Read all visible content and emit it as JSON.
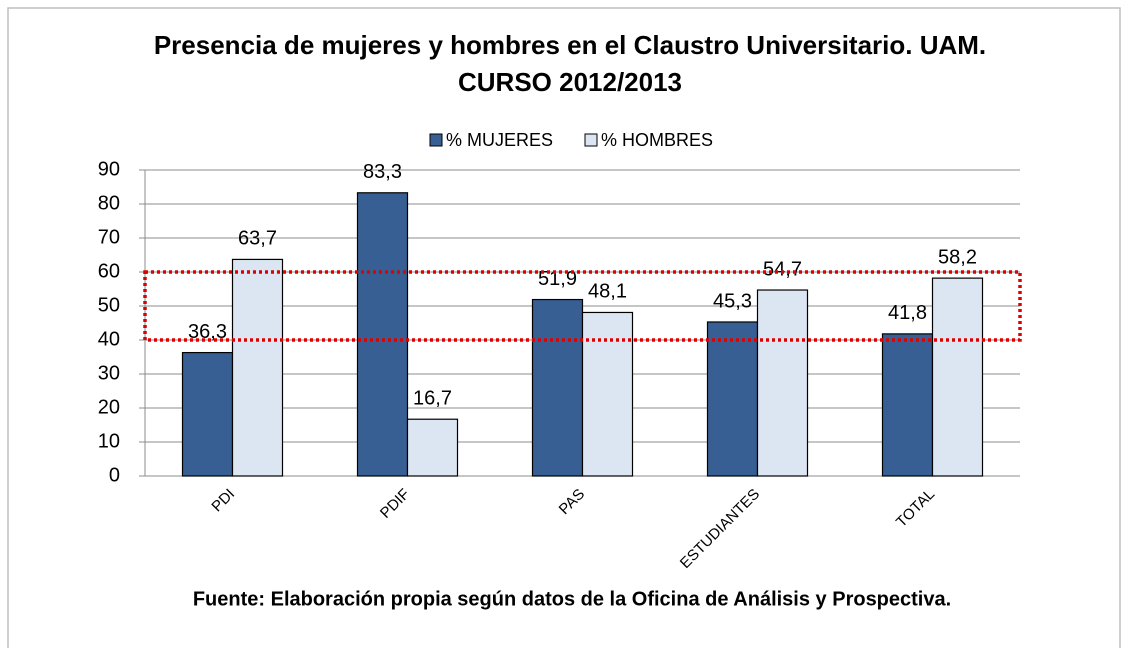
{
  "chart_data": {
    "type": "bar",
    "title": [
      "Presencia de mujeres y hombres en el Claustro Universitario. UAM.",
      "CURSO 2012/2013"
    ],
    "categories": [
      "PDI",
      "PDIF",
      "PAS",
      "ESTUDIANTES",
      "TOTAL"
    ],
    "series": [
      {
        "name": "% MUJERES",
        "color": "#375f93",
        "values": [
          36.3,
          83.3,
          51.9,
          45.3,
          41.8
        ],
        "value_labels": [
          "36,3",
          "83,3",
          "51,9",
          "45,3",
          "41,8"
        ]
      },
      {
        "name": "% HOMBRES",
        "color": "#dce6f2",
        "values": [
          63.7,
          16.7,
          48.1,
          54.7,
          58.2
        ],
        "value_labels": [
          "63,7",
          "16,7",
          "48,1",
          "54,7",
          "58,2"
        ]
      }
    ],
    "ylim": [
      0,
      90
    ],
    "yticks": [
      0,
      10,
      20,
      30,
      40,
      50,
      60,
      70,
      80,
      90
    ],
    "grid": true,
    "highlight": {
      "ylim": [
        40,
        60
      ],
      "color": "#e00000"
    },
    "source": "Fuente: Elaboración propia según datos de la Oficina de Análisis y Prospectiva."
  }
}
